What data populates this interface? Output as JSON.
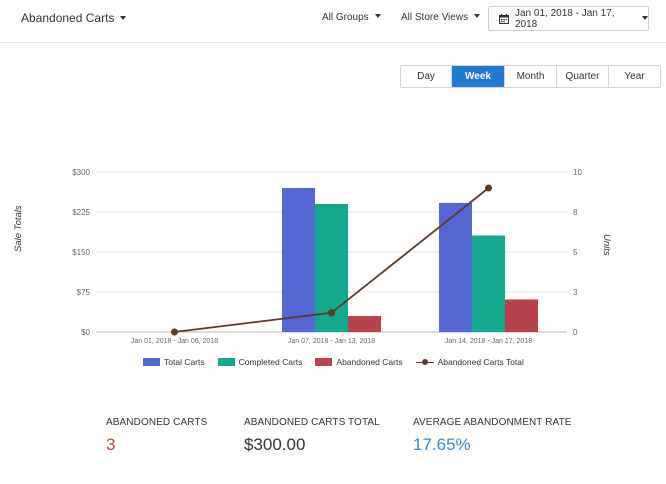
{
  "header": {
    "report_select": "Abandoned Carts",
    "group_filter": "All Groups",
    "store_filter": "All Store Views",
    "date_range": "Jan 01, 2018 - Jan 17, 2018",
    "calendar_icon": "calendar-icon"
  },
  "periods": [
    {
      "label": "Day",
      "active": false
    },
    {
      "label": "Week",
      "active": true
    },
    {
      "label": "Month",
      "active": false
    },
    {
      "label": "Quarter",
      "active": false
    },
    {
      "label": "Year",
      "active": false
    }
  ],
  "chart_data": {
    "type": "bar",
    "categories": [
      "Jan 01, 2018 - Jan 06, 2018",
      "Jan 07, 2018 - Jan 13, 2018",
      "Jan 14, 2018 - Jan 17, 2018"
    ],
    "ylabel": "Sale Totals",
    "y2label": "Units",
    "ylim": [
      0,
      300
    ],
    "y_ticks": [
      "$0",
      "$75",
      "$150",
      "$225",
      "$300"
    ],
    "y_tick_values": [
      0,
      75,
      150,
      225,
      300
    ],
    "y2lim": [
      0,
      10
    ],
    "y2_ticks": [
      "0",
      "3",
      "5",
      "8",
      "10"
    ],
    "y2_tick_values": [
      0,
      2.5,
      5,
      7.5,
      10
    ],
    "grid": true,
    "legend_position": "bottom",
    "series": [
      {
        "name": "Total Carts",
        "type": "bar",
        "axis": "left",
        "color": "#5567d3",
        "values": [
          0,
          270,
          242
        ]
      },
      {
        "name": "Completed Carts",
        "type": "bar",
        "axis": "left",
        "color": "#13a98f",
        "values": [
          0,
          240,
          181
        ]
      },
      {
        "name": "Abandoned Carts",
        "type": "bar",
        "axis": "left",
        "color": "#b8434d",
        "values": [
          0,
          30,
          61
        ]
      },
      {
        "name": "Abandoned Carts Total",
        "type": "line",
        "axis": "right",
        "color": "#5b3a28",
        "values": [
          0,
          1.2,
          9
        ]
      }
    ]
  },
  "totals": [
    {
      "label": "ABANDONED CARTS",
      "value": "3",
      "color": "#b0493a"
    },
    {
      "label": "ABANDONED CARTS TOTAL",
      "value": "$300.00",
      "color": "#333333"
    },
    {
      "label": "AVERAGE ABANDONMENT RATE",
      "value": "17.65%",
      "color": "#3d8ac9"
    }
  ]
}
